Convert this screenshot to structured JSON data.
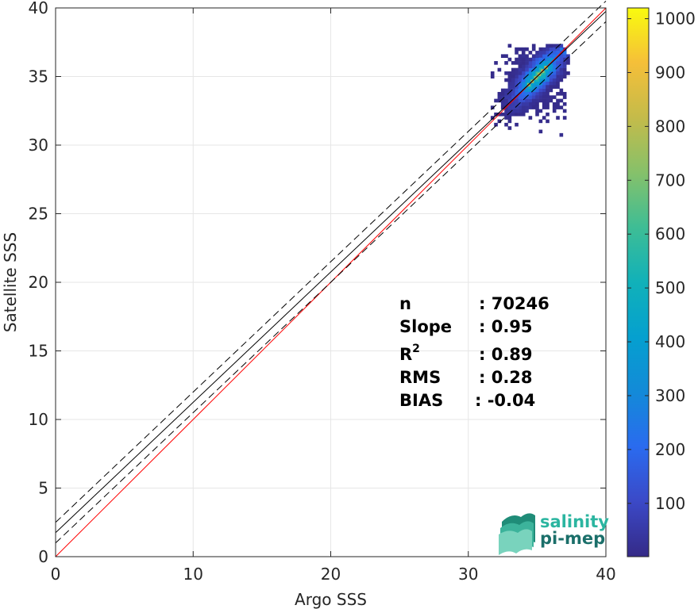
{
  "chart_data": {
    "type": "heatmap",
    "title": "",
    "xlabel": "Argo SSS",
    "ylabel": "Satellite SSS",
    "xlim": [
      0,
      40
    ],
    "ylim": [
      0,
      40
    ],
    "xticks": [
      0,
      10,
      20,
      30,
      40
    ],
    "yticks": [
      0,
      5,
      10,
      15,
      20,
      25,
      30,
      35,
      40
    ],
    "grid": true,
    "colorbar": {
      "colormap": "parula",
      "range": [
        1,
        1020
      ],
      "ticks": [
        100,
        200,
        300,
        400,
        500,
        600,
        700,
        800,
        900,
        1000
      ]
    },
    "reference_lines": [
      {
        "type": "identity",
        "color": "#ff0000",
        "intercept": 0,
        "slope": 1
      },
      {
        "type": "regression",
        "color": "#000000",
        "style": "solid",
        "intercept": 1.75,
        "slope": 0.95
      },
      {
        "type": "regression-upper",
        "color": "#000000",
        "style": "dashed",
        "intercept": 2.5,
        "slope": 0.95
      },
      {
        "type": "regression-lower",
        "color": "#000000",
        "style": "dashed",
        "intercept": 1.0,
        "slope": 0.95
      }
    ],
    "density": {
      "center": [
        35.2,
        35.0
      ],
      "main_axis_x_range": [
        31,
        37
      ],
      "peak_count": 1020
    },
    "stats": [
      {
        "key": "n",
        "value": ": 70246"
      },
      {
        "key": "Slope",
        "value": ": 0.95"
      },
      {
        "key": "R",
        "sup": "2",
        "value": ": 0.89"
      },
      {
        "key": "RMS",
        "value": ": 0.28"
      },
      {
        "key": "BIAS",
        "value": ": -0.04"
      }
    ]
  },
  "logo": {
    "line1": "salinity",
    "line2": "pi-mep",
    "color1": "#2bb5a0",
    "color2": "#1b6f6a"
  }
}
